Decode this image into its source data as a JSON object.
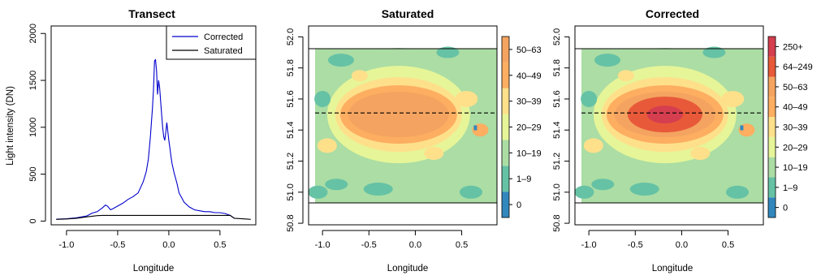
{
  "chart_data": [
    {
      "type": "line",
      "title": "Transect",
      "xlabel": "Longitude",
      "ylabel": "Light intensity (DN)",
      "xlim": [
        -1.15,
        0.85
      ],
      "ylim": [
        -40,
        2080
      ],
      "xticks": [
        -1.0,
        -0.5,
        0.0,
        0.5
      ],
      "xtick_labels": [
        "-1.0",
        "-0.5",
        "0.0",
        "0.5"
      ],
      "yticks": [
        0,
        500,
        1000,
        1500,
        2000
      ],
      "ytick_labels": [
        "0",
        "500",
        "1000",
        "1500",
        "2000"
      ],
      "legend_position": "top-right",
      "series": [
        {
          "name": "Corrected",
          "color": "#0000cc",
          "x": [
            -1.1,
            -1.0,
            -0.9,
            -0.8,
            -0.75,
            -0.7,
            -0.65,
            -0.62,
            -0.6,
            -0.57,
            -0.55,
            -0.5,
            -0.45,
            -0.4,
            -0.35,
            -0.3,
            -0.25,
            -0.22,
            -0.2,
            -0.18,
            -0.16,
            -0.15,
            -0.14,
            -0.13,
            -0.12,
            -0.11,
            -0.1,
            -0.09,
            -0.08,
            -0.07,
            -0.06,
            -0.05,
            -0.04,
            -0.03,
            -0.02,
            -0.01,
            0.0,
            0.01,
            0.02,
            0.03,
            0.05,
            0.08,
            0.1,
            0.15,
            0.2,
            0.25,
            0.3,
            0.35,
            0.4,
            0.45,
            0.5,
            0.55,
            0.6,
            0.64
          ],
          "values": [
            20,
            25,
            35,
            55,
            85,
            100,
            140,
            170,
            160,
            120,
            130,
            160,
            190,
            230,
            260,
            300,
            420,
            530,
            660,
            900,
            1200,
            1400,
            1710,
            1720,
            1600,
            1350,
            1500,
            1420,
            1280,
            1130,
            1000,
            900,
            860,
            940,
            1050,
            960,
            860,
            780,
            700,
            620,
            520,
            400,
            300,
            200,
            150,
            120,
            110,
            100,
            100,
            90,
            90,
            80,
            60,
            30
          ]
        },
        {
          "name": "Saturated",
          "color": "#000000",
          "x": [
            -1.1,
            -1.0,
            -0.9,
            -0.8,
            -0.75,
            -0.7,
            -0.65,
            0.6,
            0.64,
            0.75,
            0.8
          ],
          "values": [
            18,
            22,
            30,
            45,
            52,
            58,
            60,
            60,
            30,
            22,
            18
          ]
        }
      ]
    },
    {
      "type": "heatmap",
      "title": "Saturated",
      "xlabel": "Longitude",
      "ylabel": "",
      "xlim": [
        -1.15,
        0.88
      ],
      "ylim": [
        50.79,
        52.07
      ],
      "xticks": [
        -1.0,
        -0.5,
        0.0,
        0.5
      ],
      "xtick_labels": [
        "-1.0",
        "-0.5",
        "0.0",
        "0.5"
      ],
      "yticks": [
        50.8,
        51.0,
        51.2,
        51.4,
        51.6,
        51.8,
        52.0
      ],
      "ytick_labels": [
        "50.8",
        "51.0",
        "51.2",
        "51.4",
        "51.6",
        "51.8",
        "52.0"
      ],
      "transect_lat": 51.51,
      "legend_labels": [
        "0",
        "1–9",
        "10–19",
        "20–29",
        "30–39",
        "40–49",
        "50–63"
      ],
      "legend_colors": [
        "#3288bd",
        "#66c2a5",
        "#abdda4",
        "#e6f598",
        "#fee08b",
        "#fdae61",
        "#f4a460"
      ]
    },
    {
      "type": "heatmap",
      "title": "Corrected",
      "xlabel": "Longitude",
      "ylabel": "",
      "xlim": [
        -1.15,
        0.88
      ],
      "ylim": [
        50.79,
        52.07
      ],
      "xticks": [
        -1.0,
        -0.5,
        0.0,
        0.5
      ],
      "xtick_labels": [
        "-1.0",
        "-0.5",
        "0.0",
        "0.5"
      ],
      "yticks": [
        50.8,
        51.0,
        51.2,
        51.4,
        51.6,
        51.8,
        52.0
      ],
      "ytick_labels": [
        "50.8",
        "51.0",
        "51.2",
        "51.4",
        "51.6",
        "51.8",
        "52.0"
      ],
      "transect_lat": 51.51,
      "legend_labels": [
        "0",
        "1–9",
        "10–19",
        "20–29",
        "30–39",
        "40–49",
        "50–63",
        "64–249",
        "250+"
      ],
      "legend_colors": [
        "#3288bd",
        "#66c2a5",
        "#abdda4",
        "#e6f598",
        "#fee08b",
        "#fdae61",
        "#f4a460",
        "#e8593a",
        "#d53e4f"
      ]
    }
  ]
}
